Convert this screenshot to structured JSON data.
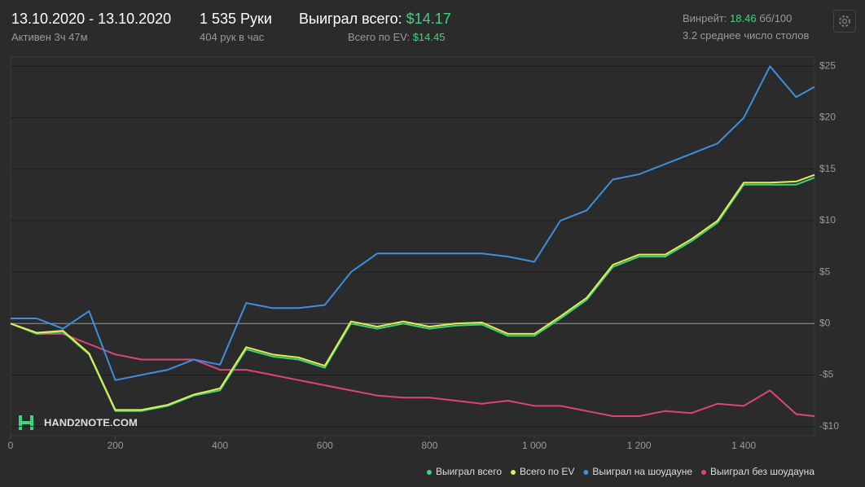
{
  "header": {
    "dates": "13.10.2020 - 13.10.2020",
    "active": "Активен 3ч 47м",
    "hands": "1 535 Руки",
    "hands_per_hour": "404 рук в час",
    "won_label": "Выиграл всего:",
    "won_value": "$14.17",
    "ev_label": "Всего по EV:",
    "ev_value": "$14.45",
    "winrate_label": "Винрейт:",
    "winrate_value": "18.46",
    "winrate_unit": "бб/100",
    "tables": "3.2 среднее число столов",
    "watermark": "HAND2NOTE.COM"
  },
  "chart_data": {
    "type": "line",
    "x": [
      0,
      50,
      100,
      150,
      200,
      250,
      300,
      350,
      400,
      450,
      500,
      550,
      600,
      650,
      700,
      750,
      800,
      850,
      900,
      950,
      1000,
      1050,
      1100,
      1150,
      1200,
      1250,
      1300,
      1350,
      1400,
      1450,
      1500,
      1535
    ],
    "xlim": [
      0,
      1535
    ],
    "xticks": [
      0,
      200,
      400,
      600,
      800,
      {
        "value": 1000,
        "label": "1 000"
      },
      {
        "value": 1200,
        "label": "1 200"
      },
      {
        "value": 1400,
        "label": "1 400"
      }
    ],
    "ylim": [
      -10.9,
      25.9
    ],
    "yticks": [
      {
        "value": -10,
        "label": "-$10"
      },
      {
        "value": -5,
        "label": "-$5"
      },
      {
        "value": 0,
        "label": "$0"
      },
      {
        "value": 5,
        "label": "$5"
      },
      {
        "value": 10,
        "label": "$10"
      },
      {
        "value": 15,
        "label": "$15"
      },
      {
        "value": 20,
        "label": "$20"
      },
      {
        "value": 25,
        "label": "$25"
      }
    ],
    "grid": true,
    "series": [
      {
        "name": "Выиграл всего",
        "color": "#3ed47f",
        "values": [
          0,
          -1,
          -0.8,
          -3,
          -8.5,
          -8.5,
          -8,
          -7,
          -6.5,
          -2.5,
          -3.2,
          -3.5,
          -4.3,
          0,
          -0.5,
          0,
          -0.5,
          -0.2,
          -0.1,
          -1.2,
          -1.2,
          0.5,
          2.3,
          5.5,
          6.5,
          6.5,
          8,
          9.8,
          13.5,
          13.5,
          13.5,
          14.17
        ]
      },
      {
        "name": "Всего по EV",
        "color": "#e6ef4d",
        "values": [
          0,
          -0.9,
          -0.7,
          -2.9,
          -8.4,
          -8.4,
          -7.9,
          -6.9,
          -6.3,
          -2.3,
          -3,
          -3.3,
          -4.1,
          0.2,
          -0.3,
          0.2,
          -0.3,
          0,
          0.1,
          -1,
          -1,
          0.7,
          2.5,
          5.7,
          6.7,
          6.7,
          8.2,
          10,
          13.7,
          13.7,
          13.8,
          14.45
        ]
      },
      {
        "name": "Выиграл на шоудауне",
        "color": "#3d8fe0",
        "values": [
          0.5,
          0.5,
          -0.5,
          1.2,
          -5.5,
          -5,
          -4.5,
          -3.5,
          -4,
          2,
          1.5,
          1.5,
          1.8,
          5,
          6.8,
          6.8,
          6.8,
          6.8,
          6.8,
          6.5,
          6,
          10,
          11,
          14,
          14.5,
          15.5,
          16.5,
          17.5,
          20,
          25,
          22,
          23
        ]
      },
      {
        "name": "Выиграл без шоудауна",
        "color": "#df4479",
        "values": [
          0,
          -1,
          -1,
          -2,
          -3,
          -3.5,
          -3.5,
          -3.5,
          -4.5,
          -4.5,
          -5,
          -5.5,
          -6,
          -6.5,
          -7,
          -7.2,
          -7.2,
          -7.5,
          -7.8,
          -7.5,
          -8,
          -8,
          -8.5,
          -9,
          -9,
          -8.5,
          -8.7,
          -7.8,
          -8,
          -6.5,
          -8.8,
          -9
        ]
      }
    ]
  }
}
